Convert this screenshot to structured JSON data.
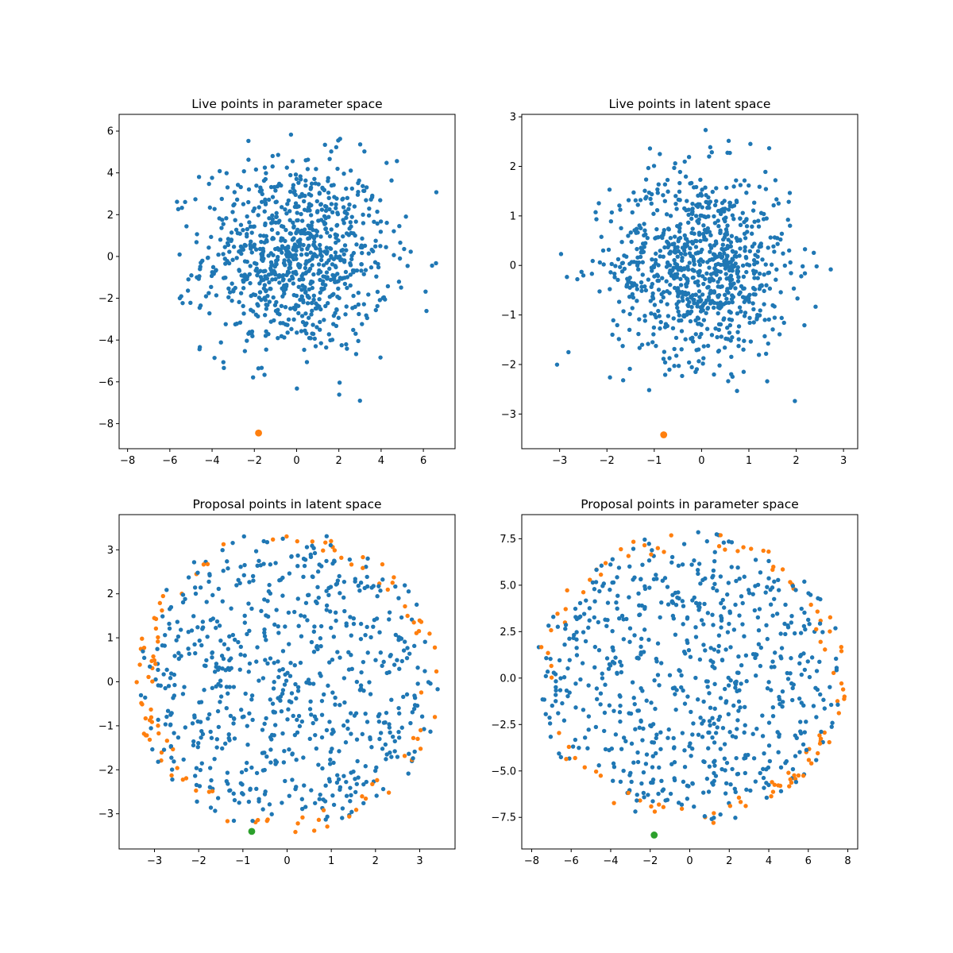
{
  "colors": {
    "blue": "#1f77b4",
    "orange": "#ff7f0e",
    "green": "#2ca02c"
  },
  "chart_data": [
    {
      "type": "scatter",
      "title": "Live points in parameter space",
      "xlabel": "",
      "ylabel": "",
      "xlim": [
        -8.4,
        7.5
      ],
      "ylim": [
        -9.2,
        6.8
      ],
      "xticks": [
        -8,
        -6,
        -4,
        -2,
        0,
        2,
        4,
        6
      ],
      "yticks": [
        -8,
        -6,
        -4,
        -2,
        0,
        2,
        4,
        6
      ],
      "grid": false,
      "cloud": {
        "shape": "gaussian",
        "n": 900,
        "center": [
          0,
          0
        ],
        "sd": [
          2.2,
          2.3
        ],
        "color": "#1f77b4"
      },
      "highlight": {
        "x": -1.8,
        "y": -8.45,
        "color": "#ff7f0e"
      }
    },
    {
      "type": "scatter",
      "title": "Live points in latent space",
      "xlabel": "",
      "ylabel": "",
      "xlim": [
        -3.8,
        3.3
      ],
      "ylim": [
        -3.7,
        3.05
      ],
      "xticks": [
        -3,
        -2,
        -1,
        0,
        1,
        2,
        3
      ],
      "yticks": [
        -3,
        -2,
        -1,
        0,
        1,
        2,
        3
      ],
      "grid": false,
      "cloud": {
        "shape": "gaussian",
        "n": 900,
        "center": [
          0,
          0
        ],
        "sd": [
          0.95,
          0.95
        ],
        "color": "#1f77b4"
      },
      "highlight": {
        "x": -0.8,
        "y": -3.42,
        "color": "#ff7f0e"
      }
    },
    {
      "type": "scatter",
      "title": "Proposal points in latent space",
      "xlabel": "",
      "ylabel": "",
      "xlim": [
        -3.8,
        3.8
      ],
      "ylim": [
        -3.8,
        3.8
      ],
      "xticks": [
        -3,
        -2,
        -1,
        0,
        1,
        2,
        3
      ],
      "yticks": [
        -3,
        -2,
        -1,
        0,
        1,
        2,
        3
      ],
      "grid": false,
      "cloud": {
        "shape": "disk",
        "n": 780,
        "center": [
          0,
          0
        ],
        "radius": 3.45,
        "inner_radius": 3.0,
        "color": "#1f77b4",
        "outer_color": "#ff7f0e"
      },
      "highlight": {
        "x": -0.8,
        "y": -3.4,
        "color": "#2ca02c"
      }
    },
    {
      "type": "scatter",
      "title": "Proposal points in parameter space",
      "xlabel": "",
      "ylabel": "",
      "xlim": [
        -8.5,
        8.5
      ],
      "ylim": [
        -9.2,
        8.8
      ],
      "xticks": [
        -8,
        -6,
        -4,
        -2,
        0,
        2,
        4,
        6,
        8
      ],
      "yticks": [
        -7.5,
        -5.0,
        -2.5,
        0.0,
        2.5,
        5.0,
        7.5
      ],
      "ytick_labels": [
        "−7.5",
        "−5.0",
        "−2.5",
        "0.0",
        "2.5",
        "5.0",
        "7.5"
      ],
      "grid": false,
      "cloud": {
        "shape": "disk",
        "n": 780,
        "center": [
          0,
          0
        ],
        "radius": 7.9,
        "inner_radius": 6.9,
        "color": "#1f77b4",
        "outer_color": "#ff7f0e"
      },
      "highlight": {
        "x": -1.8,
        "y": -8.45,
        "color": "#2ca02c"
      }
    }
  ]
}
